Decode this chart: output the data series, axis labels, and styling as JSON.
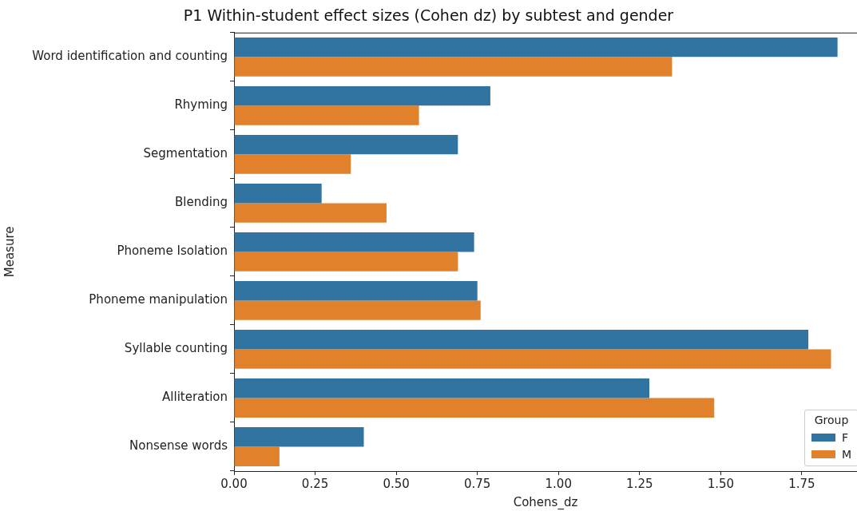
{
  "chart_data": {
    "type": "bar",
    "orientation": "horizontal",
    "title": "P1 Within-student effect sizes (Cohen dz) by subtest and gender",
    "xlabel": "Cohens_dz",
    "ylabel": "Measure",
    "legend_title": "Group",
    "legend": "bottom right",
    "grid": false,
    "categories": [
      "Word identification and counting",
      "Rhyming",
      "Segmentation",
      "Blending",
      "Phoneme Isolation",
      "Phoneme manipulation",
      "Syllable counting",
      "Alliteration",
      "Nonsense words"
    ],
    "series": [
      {
        "name": "F",
        "color": "#3274a1",
        "values": [
          1.86,
          0.79,
          0.69,
          0.27,
          0.74,
          0.75,
          1.77,
          1.28,
          0.4
        ]
      },
      {
        "name": "M",
        "color": "#e1812c",
        "values": [
          1.35,
          0.57,
          0.36,
          0.47,
          0.69,
          0.76,
          1.84,
          1.48,
          0.14
        ]
      }
    ],
    "xlim": [
      0,
      1.92
    ],
    "xticks": [
      {
        "value": 0,
        "label": "0.00"
      },
      {
        "value": 0.25,
        "label": "0.25"
      },
      {
        "value": 0.5,
        "label": "0.50"
      },
      {
        "value": 0.75,
        "label": "0.75"
      },
      {
        "value": 1,
        "label": "1.00"
      },
      {
        "value": 1.25,
        "label": "1.25"
      },
      {
        "value": 1.5,
        "label": "1.50"
      },
      {
        "value": 1.75,
        "label": "1.75"
      }
    ]
  }
}
